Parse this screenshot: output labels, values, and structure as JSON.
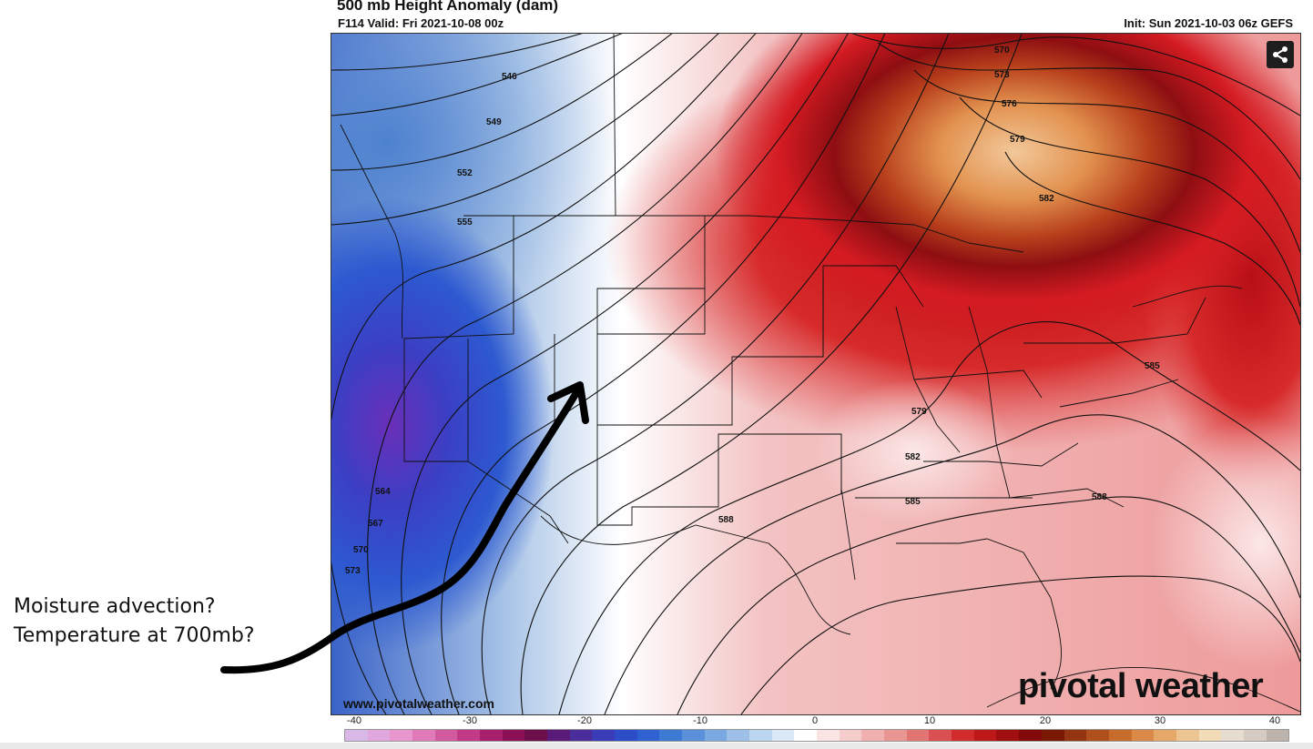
{
  "header": {
    "title": "500 mb Height Anomaly (dam)",
    "valid": "F114 Valid: Fri 2021-10-08 00z",
    "init": "Init: Sun 2021-10-03 06z GEFS"
  },
  "watermark": {
    "url": "www.pivotalweather.com",
    "brand": "pivotal weather"
  },
  "scale": {
    "tick_labels": [
      "-40",
      "-30",
      "-20",
      "-10",
      "0",
      "10",
      "20",
      "30",
      "40"
    ]
  },
  "contour_labels": [
    "546",
    "549",
    "552",
    "555",
    "564",
    "567",
    "570",
    "573",
    "570",
    "573",
    "576",
    "579",
    "582",
    "579",
    "582",
    "585",
    "585",
    "588",
    "588"
  ],
  "annotations": {
    "line1": "Moisture advection?",
    "line2": "Temperature at 700mb?"
  },
  "icons": {
    "share": "share-icon",
    "arrow": "arrow-annotation"
  },
  "colors": {
    "negative_anomaly": "#2b56c4",
    "positive_anomaly": "#c8141e",
    "max_anomaly": "#d4884a",
    "arrow": "#000000"
  }
}
